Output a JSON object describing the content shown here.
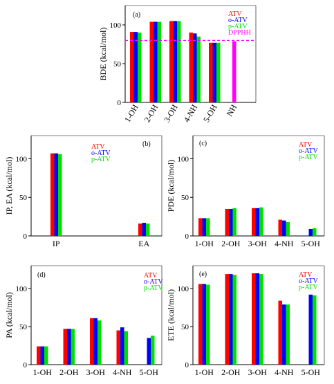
{
  "colors": {
    "ATV": "#ff0000",
    "o-ATV": "#0000ff",
    "p-ATV": "#00e000",
    "DPPHH": "#ff00ff",
    "dim_label": "#9a4a6a"
  },
  "chart_data": [
    {
      "id": "a",
      "type": "bar",
      "tag": "(a)",
      "title": "",
      "xlabel": "",
      "ylabel": "BDE (kcal/mol)",
      "ylim": [
        0,
        125
      ],
      "yticks": [
        0,
        50,
        100
      ],
      "categories": [
        "1-OH",
        "2-OH",
        "3-OH",
        "4-NH",
        "5-OH",
        "NH"
      ],
      "rotated_labels": true,
      "label_colors": [
        null,
        null,
        null,
        "dim_label",
        null,
        "DPPHH"
      ],
      "legend": [
        "ATV",
        "o-ATV",
        "p-ATV",
        "DPPHH"
      ],
      "series": [
        {
          "name": "ATV",
          "values": [
            91,
            104,
            105,
            90,
            77,
            null
          ]
        },
        {
          "name": "o-ATV",
          "values": [
            91,
            104,
            105,
            89,
            77,
            null
          ]
        },
        {
          "name": "p-ATV",
          "values": [
            90,
            104,
            105,
            85,
            77,
            null
          ]
        },
        {
          "name": "DPPHH",
          "values": [
            null,
            null,
            null,
            null,
            null,
            79
          ]
        }
      ],
      "reference_line": {
        "name": "DPPHH",
        "value": 80,
        "style": "dashed"
      }
    },
    {
      "id": "b",
      "type": "bar",
      "tag": "(b)",
      "title": "",
      "xlabel": "",
      "ylabel": "IP, EA (kcal/mol)",
      "ylim": [
        0,
        130
      ],
      "yticks": [
        0,
        50,
        100
      ],
      "categories": [
        "IP",
        "EA"
      ],
      "legend": [
        "ATV",
        "o-ATV",
        "p-ATV"
      ],
      "series": [
        {
          "name": "ATV",
          "values": [
            107,
            16
          ]
        },
        {
          "name": "o-ATV",
          "values": [
            107,
            17
          ]
        },
        {
          "name": "p-ATV",
          "values": [
            106,
            16
          ]
        }
      ]
    },
    {
      "id": "c",
      "type": "bar",
      "tag": "(c)",
      "title": "",
      "xlabel": "",
      "ylabel": "PDE (kcal/mol)",
      "ylim": [
        0,
        130
      ],
      "yticks": [
        0,
        50,
        100
      ],
      "categories": [
        "1-OH",
        "2-OH",
        "3-OH",
        "4-NH",
        "5-OH"
      ],
      "legend": [
        "ATV",
        "o-ATV",
        "p-ATV"
      ],
      "series": [
        {
          "name": "ATV",
          "values": [
            23,
            35,
            36,
            21,
            null
          ]
        },
        {
          "name": "o-ATV",
          "values": [
            23,
            35,
            36,
            20,
            9
          ]
        },
        {
          "name": "p-ATV",
          "values": [
            23,
            36,
            37,
            18,
            10
          ]
        }
      ]
    },
    {
      "id": "d",
      "type": "bar",
      "tag": "(d)",
      "title": "",
      "xlabel": "",
      "ylabel": "PA (kcal/mol)",
      "ylim": [
        0,
        130
      ],
      "yticks": [
        0,
        50,
        100
      ],
      "categories": [
        "1-OH",
        "2-OH",
        "3-OH",
        "4-NH",
        "5-OH"
      ],
      "legend": [
        "ATV",
        "o-ATV",
        "p-ATV"
      ],
      "series": [
        {
          "name": "ATV",
          "values": [
            24,
            47,
            61,
            45,
            null
          ]
        },
        {
          "name": "o-ATV",
          "values": [
            24,
            47,
            61,
            49,
            35
          ]
        },
        {
          "name": "p-ATV",
          "values": [
            24,
            47,
            58,
            44,
            38
          ]
        }
      ]
    },
    {
      "id": "e",
      "type": "bar",
      "tag": "(e)",
      "title": "",
      "xlabel": "",
      "ylabel": "ETE (kcal/mol)",
      "ylim": [
        0,
        130
      ],
      "yticks": [
        0,
        50,
        100
      ],
      "categories": [
        "1-OH",
        "2-OH",
        "3-OH",
        "4-NH",
        "5-OH"
      ],
      "legend": [
        "ATV",
        "o-ATV",
        "p-ATV"
      ],
      "series": [
        {
          "name": "ATV",
          "values": [
            106,
            119,
            120,
            84,
            null
          ]
        },
        {
          "name": "o-ATV",
          "values": [
            106,
            119,
            120,
            79,
            92
          ]
        },
        {
          "name": "p-ATV",
          "values": [
            105,
            118,
            119,
            79,
            91
          ]
        }
      ]
    }
  ]
}
